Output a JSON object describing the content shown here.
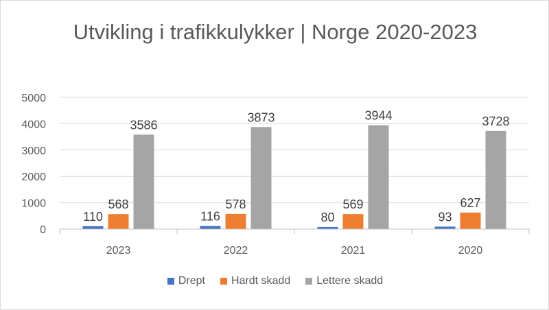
{
  "chart_data": {
    "type": "bar",
    "title": "Utvikling i trafikkulykker | Norge 2020-2023",
    "categories": [
      "2023",
      "2022",
      "2021",
      "2020"
    ],
    "series": [
      {
        "name": "Drept",
        "color": "#4472c4",
        "values": [
          110,
          116,
          80,
          93
        ]
      },
      {
        "name": "Hardt skadd",
        "color": "#ed7d31",
        "values": [
          568,
          578,
          569,
          627
        ]
      },
      {
        "name": "Lettere skadd",
        "color": "#a5a5a5",
        "values": [
          3586,
          3873,
          3944,
          3728
        ]
      }
    ],
    "ylim": [
      0,
      5000
    ],
    "yticks": [
      "0",
      "1000",
      "2000",
      "3000",
      "4000",
      "5000"
    ],
    "grid": true,
    "legend": "bottom"
  }
}
